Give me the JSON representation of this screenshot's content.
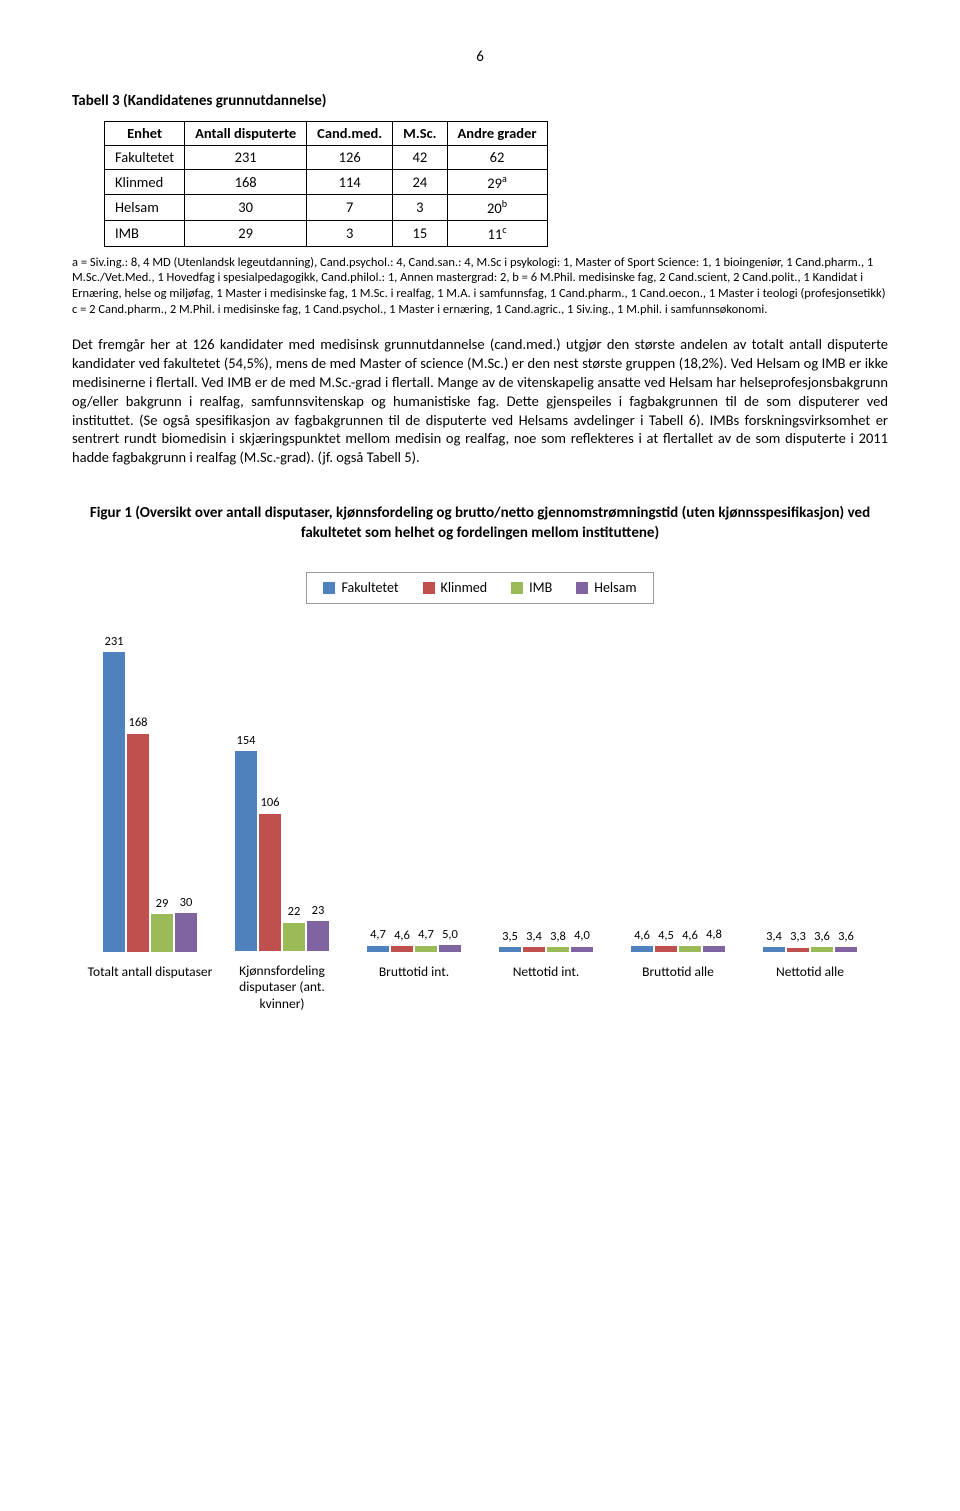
{
  "page_number": "6",
  "table3": {
    "title": "Tabell 3 (Kandidatenes grunnutdannelse)",
    "columns": [
      "Enhet",
      "Antall disputerte",
      "Cand.med.",
      "M.Sc.",
      "Andre grader"
    ],
    "rows": [
      {
        "enhet": "Fakultetet",
        "c1": "231",
        "c2": "126",
        "c3": "42",
        "c4": "62",
        "sup": ""
      },
      {
        "enhet": "Klinmed",
        "c1": "168",
        "c2": "114",
        "c3": "24",
        "c4": "29",
        "sup": "a"
      },
      {
        "enhet": "Helsam",
        "c1": "30",
        "c2": "7",
        "c3": "3",
        "c4": "20",
        "sup": "b"
      },
      {
        "enhet": "IMB",
        "c1": "29",
        "c2": "3",
        "c3": "15",
        "c4": "11",
        "sup": "c"
      }
    ],
    "footnote": "a = Siv.ing.: 8, 4 MD (Utenlandsk legeutdanning), Cand.psychol.: 4, Cand.san.: 4, M.Sc i psykologi: 1, Master of Sport Science: 1, 1 bioingeniør, 1 Cand.pharm., 1 M.Sc./Vet.Med., 1 Hovedfag i spesialpedagogikk, Cand.philol.: 1, Annen mastergrad: 2, b = 6  M.Phil. medisinske fag, 2 Cand.scient, 2 Cand.polit., 1 Kandidat i Ernæring, helse og miljøfag, 1 Master i medisinske fag, 1 M.Sc. i realfag, 1 M.A. i samfunnsfag, 1 Cand.pharm., 1 Cand.oecon., 1 Master i teologi (profesjonsetikk) c = 2 Cand.pharm., 2 M.Phil. i medisinske fag, 1 Cand.psychol., 1 Master i ernæring, 1 Cand.agric., 1 Siv.ing., 1 M.phil. i samfunnsøkonomi."
  },
  "paragraph": "Det fremgår her at 126 kandidater med medisinsk grunnutdannelse (cand.med.) utgjør den største andelen av totalt antall disputerte kandidater ved fakultetet (54,5%), mens de med Master of science (M.Sc.) er den nest største gruppen (18,2%). Ved Helsam og IMB er ikke medisinerne i flertall. Ved IMB er de med M.Sc.-grad i flertall. Mange av de vitenskapelig ansatte ved Helsam har helseprofesjonsbakgrunn og/eller bakgrunn i realfag, samfunnsvitenskap og humanistiske fag. Dette gjenspeiles i fagbakgrunnen til de som disputerer ved instituttet. (Se også spesifikasjon av fagbakgrunnen til de disputerte ved Helsams avdelinger i Tabell 6). IMBs forskningsvirksomhet er sentrert rundt biomedisin i skjæringspunktet mellom medisin og realfag, noe som reflekteres i at flertallet av de som disputerte i 2011 hadde fagbakgrunn i realfag  (M.Sc.-grad). (jf. også Tabell 5).",
  "figure1": {
    "title": "Figur 1 (Oversikt over antall disputaser, kjønnsfordeling og brutto/netto gjennomstrømningstid (uten kjønnsspesifikasjon) ved fakultetet som helhet og fordelingen mellom instituttene)",
    "series": [
      {
        "name": "Fakultetet",
        "color": "#4f81bd"
      },
      {
        "name": "Klinmed",
        "color": "#c0504d"
      },
      {
        "name": "IMB",
        "color": "#9bbb59"
      },
      {
        "name": "Helsam",
        "color": "#8064a2"
      }
    ],
    "max_value": 231,
    "groups": [
      {
        "label": "Totalt antall disputaser",
        "values": [
          "231",
          "168",
          "29",
          "30"
        ]
      },
      {
        "label": "Kjønnsfordeling disputaser (ant. kvinner)",
        "values": [
          "154",
          "106",
          "22",
          "23"
        ]
      },
      {
        "label": "Bruttotid int.",
        "values": [
          "4,7",
          "4,6",
          "4,7",
          "5,0"
        ]
      },
      {
        "label": "Nettotid int.",
        "values": [
          "3,5",
          "3,4",
          "3,8",
          "4,0"
        ]
      },
      {
        "label": "Bruttotid alle",
        "values": [
          "4,6",
          "4,5",
          "4,6",
          "4,8"
        ]
      },
      {
        "label": "Nettotid alle",
        "values": [
          "3,4",
          "3,3",
          "3,6",
          "3,6"
        ]
      }
    ]
  }
}
